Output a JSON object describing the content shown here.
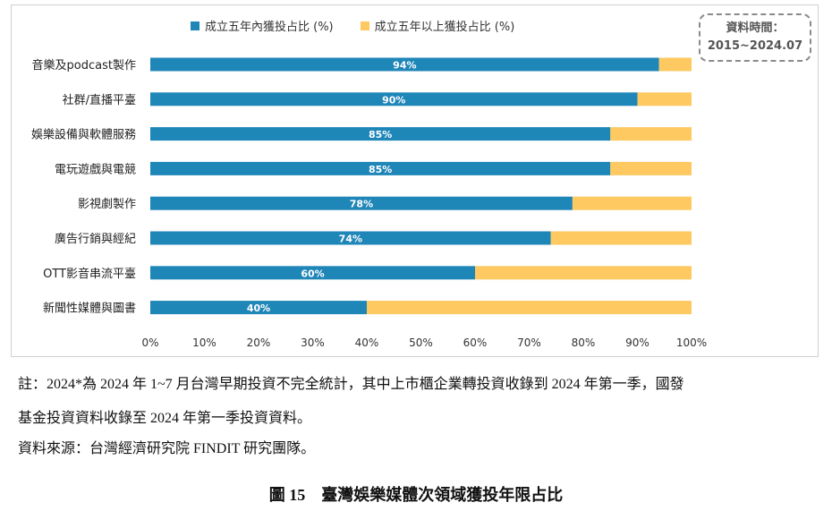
{
  "chart_data": {
    "type": "bar",
    "orientation": "horizontal",
    "stacked": true,
    "categories": [
      "音樂及podcast製作",
      "社群/直播平臺",
      "娛樂設備與軟體服務",
      "電玩遊戲與電競",
      "影視劇製作",
      "廣告行銷與經紀",
      "OTT影音串流平臺",
      "新聞性媒體與圖書"
    ],
    "series": [
      {
        "name": "成立五年內獲投占比 (%)",
        "color": "#1f86b8",
        "values": [
          94,
          90,
          85,
          85,
          78,
          74,
          60,
          40
        ]
      },
      {
        "name": "成立五年以上獲投占比 (%)",
        "color": "#fdc960",
        "values": [
          6,
          10,
          15,
          15,
          22,
          26,
          40,
          60
        ]
      }
    ],
    "data_labels": [
      "94%",
      "90%",
      "85%",
      "85%",
      "78%",
      "74%",
      "60%",
      "40%"
    ],
    "xlim": [
      0,
      100
    ],
    "xticks": [
      "0%",
      "10%",
      "20%",
      "30%",
      "40%",
      "50%",
      "60%",
      "70%",
      "80%",
      "90%",
      "100%"
    ],
    "grid": false,
    "legend_position": "top",
    "period_box": {
      "line1": "資料時間：",
      "line2": "2015~2024.07"
    }
  },
  "notes": {
    "line1": "註：2024*為 2024 年 1~7 月台灣早期投資不完全統計，其中上市櫃企業轉投資收錄到 2024 年第一季，國發",
    "line2": "基金投資資料收錄至 2024 年第一季投資資料。",
    "source": "資料來源：台灣經濟研究院 FINDIT 研究團隊。"
  },
  "caption": "圖 15　臺灣娛樂媒體次領域獲投年限占比"
}
